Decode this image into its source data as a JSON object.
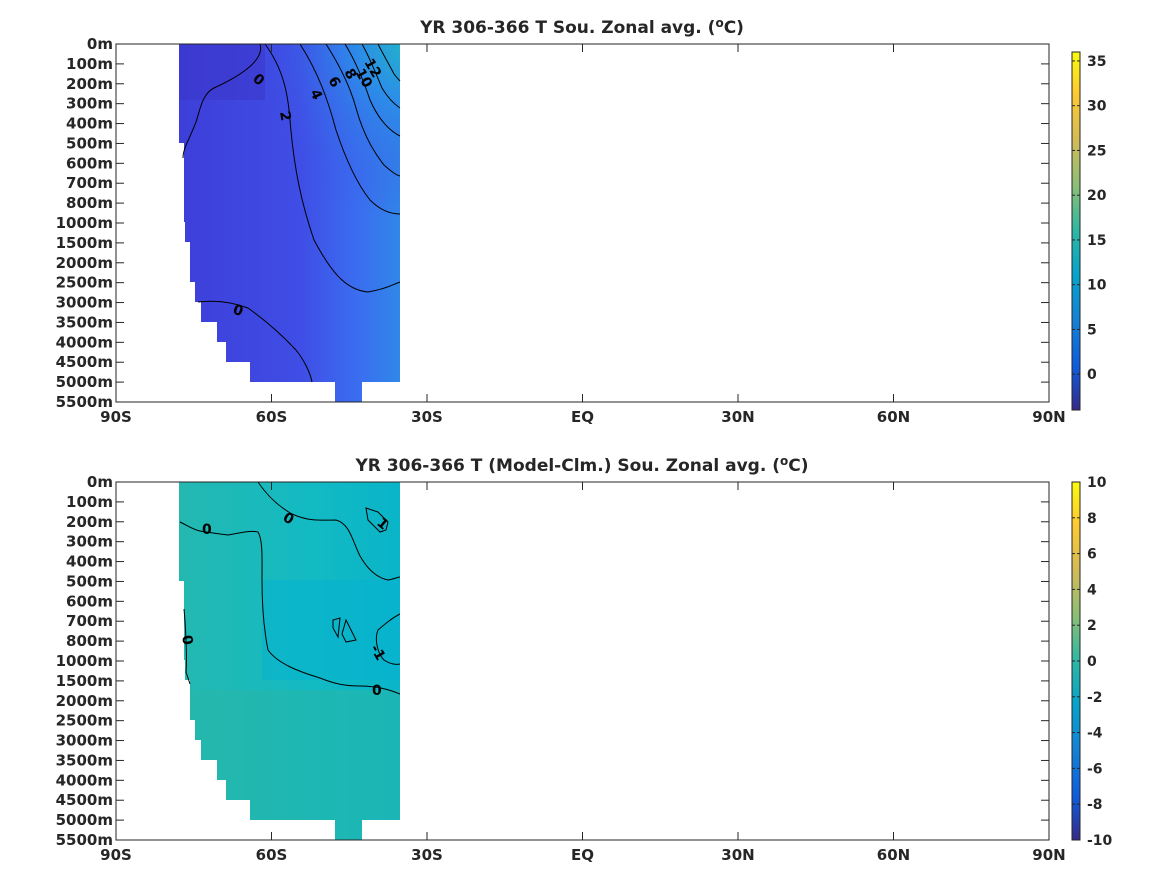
{
  "chart_data": [
    {
      "type": "heatmap",
      "title_pre": "YR 306-366 T Sou. Zonal avg. (",
      "title_sup": "o",
      "title_post": "C)",
      "x_tick_labels": [
        "90S",
        "60S",
        "30S",
        "EQ",
        "30N",
        "60N",
        "90N"
      ],
      "x_tick_values": [
        -90,
        -60,
        -30,
        0,
        30,
        60,
        90
      ],
      "xlim": [
        -90,
        90
      ],
      "y_tick_labels": [
        "0m",
        "100m",
        "200m",
        "300m",
        "400m",
        "500m",
        "600m",
        "700m",
        "800m",
        "1000m",
        "1500m",
        "2000m",
        "2500m",
        "3000m",
        "3500m",
        "4000m",
        "4500m",
        "5000m",
        "5500m"
      ],
      "data_extent_lat": [
        -77.5,
        -35.5
      ],
      "colorbar": {
        "min": -4,
        "max": 36,
        "ticks": [
          0,
          5,
          10,
          15,
          20,
          25,
          30,
          35
        ]
      },
      "contour_levels": [
        0,
        2,
        4,
        6,
        8,
        10,
        12
      ],
      "contour_labels": [
        "0",
        "2",
        "4",
        "6",
        "8",
        "10",
        "12",
        "0"
      ]
    },
    {
      "type": "heatmap",
      "title_pre": "YR 306-366 T (Model-Clm.) Sou. Zonal avg. (",
      "title_sup": "o",
      "title_post": "C)",
      "x_tick_labels": [
        "90S",
        "60S",
        "30S",
        "EQ",
        "30N",
        "60N",
        "90N"
      ],
      "x_tick_values": [
        -90,
        -60,
        -30,
        0,
        30,
        60,
        90
      ],
      "xlim": [
        -90,
        90
      ],
      "y_tick_labels": [
        "0m",
        "100m",
        "200m",
        "300m",
        "400m",
        "500m",
        "600m",
        "700m",
        "800m",
        "1000m",
        "1500m",
        "2000m",
        "2500m",
        "3000m",
        "3500m",
        "4000m",
        "4500m",
        "5000m",
        "5500m"
      ],
      "data_extent_lat": [
        -77.5,
        -35.5
      ],
      "colorbar": {
        "min": -10,
        "max": 10,
        "ticks": [
          10,
          8,
          6,
          4,
          2,
          0,
          -2,
          -4,
          -6,
          -8,
          -10
        ]
      },
      "contour_levels": [
        -1,
        0,
        1
      ],
      "contour_labels": [
        "0",
        "0",
        "1",
        "0",
        "-1",
        "0"
      ]
    }
  ]
}
